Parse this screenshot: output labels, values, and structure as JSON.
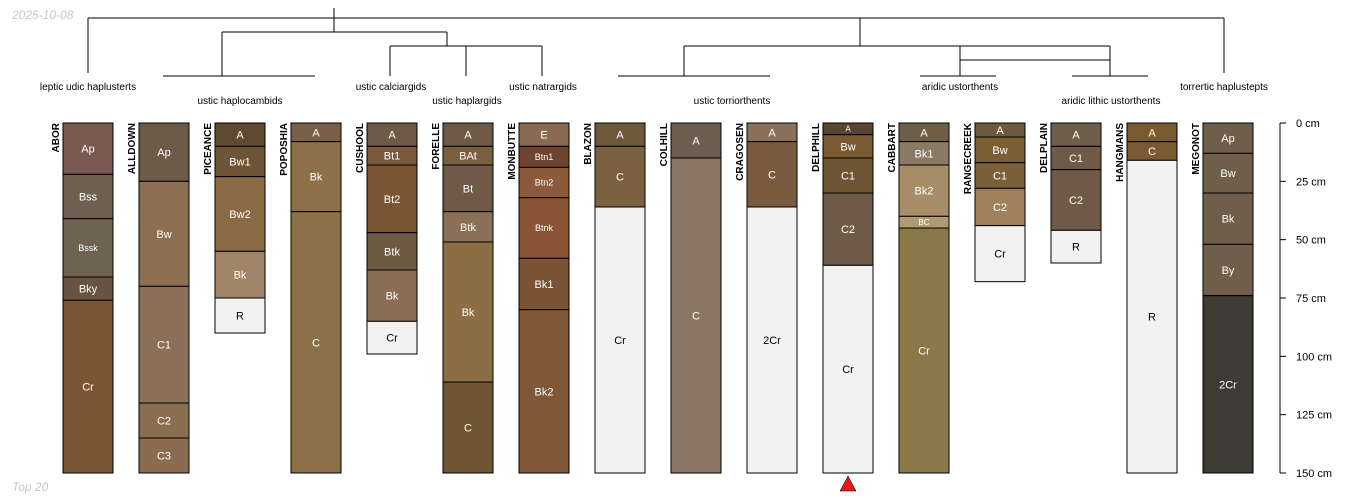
{
  "header": {
    "stamp": "2025-10-08"
  },
  "footer": {
    "note": "Top 20"
  },
  "chart_data": {
    "type": "soil-profile-sketch",
    "depth_unit": "cm",
    "depth_range": [
      0,
      150
    ],
    "depth_ticks": [
      {
        "value": 0,
        "label": "0 cm"
      },
      {
        "value": 25,
        "label": "25 cm"
      },
      {
        "value": 50,
        "label": "50 cm"
      },
      {
        "value": 75,
        "label": "75 cm"
      },
      {
        "value": 100,
        "label": "100 cm"
      },
      {
        "value": 125,
        "label": "125 cm"
      },
      {
        "value": 150,
        "label": "150 cm"
      }
    ],
    "profiles": [
      {
        "name": "ABOR",
        "horizons": [
          {
            "name": "Ap",
            "top": 0,
            "bottom": 22,
            "color": "#7a5a4e"
          },
          {
            "name": "Bss",
            "top": 22,
            "bottom": 41,
            "color": "#6e5f4e"
          },
          {
            "name": "Bssk",
            "top": 41,
            "bottom": 66,
            "color": "#6e6250"
          },
          {
            "name": "Bky",
            "top": 66,
            "bottom": 76,
            "color": "#6a5340"
          },
          {
            "name": "Cr",
            "top": 76,
            "bottom": 150,
            "color": "#7a5634"
          }
        ]
      },
      {
        "name": "ALLDOWN",
        "horizons": [
          {
            "name": "Ap",
            "top": 0,
            "bottom": 25,
            "color": "#6e5a48"
          },
          {
            "name": "Bw",
            "top": 25,
            "bottom": 70,
            "color": "#8c6e50"
          },
          {
            "name": "C1",
            "top": 70,
            "bottom": 120,
            "color": "#8a7058"
          },
          {
            "name": "C2",
            "top": 120,
            "bottom": 135,
            "color": "#8a6e52"
          },
          {
            "name": "C3",
            "top": 135,
            "bottom": 150,
            "color": "#8a6c50"
          }
        ]
      },
      {
        "name": "PICEANCE",
        "horizons": [
          {
            "name": "A",
            "top": 0,
            "bottom": 10,
            "color": "#5e4a30"
          },
          {
            "name": "Bw1",
            "top": 10,
            "bottom": 23,
            "color": "#6e5538"
          },
          {
            "name": "Bw2",
            "top": 23,
            "bottom": 55,
            "color": "#8a6a45"
          },
          {
            "name": "Bk",
            "top": 55,
            "bottom": 75,
            "color": "#a08468"
          },
          {
            "name": "R",
            "top": 75,
            "bottom": 90,
            "color": "#f2f2f2"
          }
        ]
      },
      {
        "name": "POPOSHIA",
        "horizons": [
          {
            "name": "A",
            "top": 0,
            "bottom": 8,
            "color": "#7a6048"
          },
          {
            "name": "Bk",
            "top": 8,
            "bottom": 38,
            "color": "#8e7048"
          },
          {
            "name": "C",
            "top": 38,
            "bottom": 150,
            "color": "#8c7048"
          }
        ]
      },
      {
        "name": "CUSHOOL",
        "horizons": [
          {
            "name": "A",
            "top": 0,
            "bottom": 10,
            "color": "#6e5a46"
          },
          {
            "name": "Bt1",
            "top": 10,
            "bottom": 18,
            "color": "#7a5a3a"
          },
          {
            "name": "Bt2",
            "top": 18,
            "bottom": 47,
            "color": "#7a5634"
          },
          {
            "name": "Btk",
            "top": 47,
            "bottom": 63,
            "color": "#6e5a40"
          },
          {
            "name": "Bk",
            "top": 63,
            "bottom": 85,
            "color": "#8a6e54"
          },
          {
            "name": "Cr",
            "top": 85,
            "bottom": 99,
            "color": "#f2f2f2"
          }
        ]
      },
      {
        "name": "FORELLE",
        "horizons": [
          {
            "name": "A",
            "top": 0,
            "bottom": 10,
            "color": "#6e5a46"
          },
          {
            "name": "BAt",
            "top": 10,
            "bottom": 18,
            "color": "#7a6040"
          },
          {
            "name": "Bt",
            "top": 18,
            "bottom": 38,
            "color": "#6e5a46"
          },
          {
            "name": "Btk",
            "top": 38,
            "bottom": 51,
            "color": "#8a7058"
          },
          {
            "name": "Bk",
            "top": 51,
            "bottom": 111,
            "color": "#8c6e45"
          },
          {
            "name": "C",
            "top": 111,
            "bottom": 150,
            "color": "#6e5534"
          }
        ]
      },
      {
        "name": "MONBUTTE",
        "horizons": [
          {
            "name": "E",
            "top": 0,
            "bottom": 10,
            "color": "#8a6a50"
          },
          {
            "name": "Btn1",
            "top": 10,
            "bottom": 19,
            "color": "#6e4430"
          },
          {
            "name": "Btn2",
            "top": 19,
            "bottom": 32,
            "color": "#8a5a3a"
          },
          {
            "name": "Btnk",
            "top": 32,
            "bottom": 58,
            "color": "#8a5534"
          },
          {
            "name": "Bk1",
            "top": 58,
            "bottom": 80,
            "color": "#7a5234"
          },
          {
            "name": "Bk2",
            "top": 80,
            "bottom": 150,
            "color": "#805838"
          }
        ]
      },
      {
        "name": "BLAZON",
        "horizons": [
          {
            "name": "A",
            "top": 0,
            "bottom": 10,
            "color": "#6e5a3a"
          },
          {
            "name": "C",
            "top": 10,
            "bottom": 36,
            "color": "#7a6040"
          },
          {
            "name": "Cr",
            "top": 36,
            "bottom": 150,
            "color": "#f2f2f2"
          }
        ]
      },
      {
        "name": "COLHILL",
        "horizons": [
          {
            "name": "A",
            "top": 0,
            "bottom": 15,
            "color": "#6e5e50"
          },
          {
            "name": "C",
            "top": 15,
            "bottom": 150,
            "color": "#8a7662"
          }
        ]
      },
      {
        "name": "CRAGOSEN",
        "horizons": [
          {
            "name": "A",
            "top": 0,
            "bottom": 8,
            "color": "#8a7058"
          },
          {
            "name": "C",
            "top": 8,
            "bottom": 36,
            "color": "#7a5a3e"
          },
          {
            "name": "2Cr",
            "top": 36,
            "bottom": 150,
            "color": "#f2f2f2"
          }
        ]
      },
      {
        "name": "DELPHILL",
        "horizons": [
          {
            "name": "A",
            "top": 0,
            "bottom": 5,
            "color": "#5a4630"
          },
          {
            "name": "Bw",
            "top": 5,
            "bottom": 15,
            "color": "#7a5a30"
          },
          {
            "name": "C1",
            "top": 15,
            "bottom": 30,
            "color": "#6e5634"
          },
          {
            "name": "C2",
            "top": 30,
            "bottom": 61,
            "color": "#6e5a46"
          },
          {
            "name": "Cr",
            "top": 61,
            "bottom": 150,
            "color": "#f2f2f2"
          }
        ]
      },
      {
        "name": "CABBART",
        "horizons": [
          {
            "name": "A",
            "top": 0,
            "bottom": 8,
            "color": "#6e5e46"
          },
          {
            "name": "Bk1",
            "top": 8,
            "bottom": 18,
            "color": "#8a7a66"
          },
          {
            "name": "Bk2",
            "top": 18,
            "bottom": 40,
            "color": "#a88e68"
          },
          {
            "name": "BC",
            "top": 40,
            "bottom": 45,
            "color": "#b09a72"
          },
          {
            "name": "Cr",
            "top": 45,
            "bottom": 150,
            "color": "#8a7848"
          }
        ]
      },
      {
        "name": "RANGECREEK",
        "horizons": [
          {
            "name": "A",
            "top": 0,
            "bottom": 6,
            "color": "#6e5a3c"
          },
          {
            "name": "Bw",
            "top": 6,
            "bottom": 17,
            "color": "#7a5e34"
          },
          {
            "name": "C1",
            "top": 17,
            "bottom": 28,
            "color": "#7a6038"
          },
          {
            "name": "C2",
            "top": 28,
            "bottom": 44,
            "color": "#a0805a"
          },
          {
            "name": "Cr",
            "top": 44,
            "bottom": 68,
            "color": "#f2f2f2"
          }
        ]
      },
      {
        "name": "DELPLAIN",
        "horizons": [
          {
            "name": "A",
            "top": 0,
            "bottom": 10,
            "color": "#6e5e4a"
          },
          {
            "name": "C1",
            "top": 10,
            "bottom": 20,
            "color": "#6e5a46"
          },
          {
            "name": "C2",
            "top": 20,
            "bottom": 46,
            "color": "#6e5a46"
          },
          {
            "name": "R",
            "top": 46,
            "bottom": 60,
            "color": "#f2f2f2"
          }
        ]
      },
      {
        "name": "HANGMANS",
        "horizons": [
          {
            "name": "A",
            "top": 0,
            "bottom": 8,
            "color": "#7a5a30"
          },
          {
            "name": "C",
            "top": 8,
            "bottom": 16,
            "color": "#7a5a30"
          },
          {
            "name": "R",
            "top": 16,
            "bottom": 150,
            "color": "#f2f2f2"
          }
        ]
      },
      {
        "name": "MEGONOT",
        "horizons": [
          {
            "name": "Ap",
            "top": 0,
            "bottom": 13,
            "color": "#6e5e4a"
          },
          {
            "name": "Bw",
            "top": 13,
            "bottom": 30,
            "color": "#6e5e4a"
          },
          {
            "name": "Bk",
            "top": 30,
            "bottom": 52,
            "color": "#6e5e4a"
          },
          {
            "name": "By",
            "top": 52,
            "bottom": 74,
            "color": "#6e5e4a"
          },
          {
            "name": "2Cr",
            "top": 74,
            "bottom": 150,
            "color": "#3e3a34"
          }
        ]
      }
    ],
    "tree": {
      "root": "dendrogram",
      "nodes": [
        {
          "id": "n_root",
          "height": 0
        },
        {
          "id": "n_abor",
          "leaf": "ABOR"
        },
        {
          "id": "n_left",
          "height": 1
        },
        {
          "id": "n_right",
          "height": 1
        },
        {
          "id": "n_megonot",
          "leaf": "MEGONOT"
        }
      ]
    },
    "clade_labels": [
      "leptic udic haplusterts",
      "ustic haplocambids",
      "ustic calciargids",
      "ustic haplargids",
      "ustic natrargids",
      "ustic torriorthents",
      "aridic ustorthents",
      "aridic lithic ustorthents",
      "torrertic haplustepts"
    ],
    "marker": {
      "type": "triangle",
      "profile": "DELPHILL",
      "color": "#e41a1c"
    }
  }
}
